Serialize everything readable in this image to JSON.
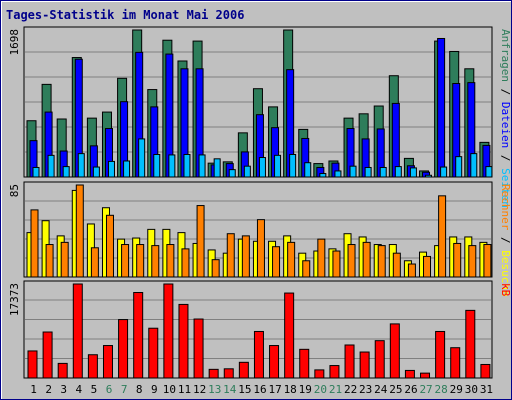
{
  "title": "Tages-Statistik im Monat Mai 2006",
  "colors": {
    "background": "#c0c0c0",
    "title": "#00008b",
    "border": "#00008b",
    "anfragen": "#2e7d5b",
    "dateien": "#0000ff",
    "seiten": "#00bfff",
    "besuche": "#ffff00",
    "rechner": "#ff8000",
    "kb": "#ff0000",
    "weekday_label": "#000000",
    "weekend_label": "#2e7d5b"
  },
  "chart_data": [
    {
      "type": "bar",
      "panel": "requests",
      "ylim": [
        0,
        1698
      ],
      "max_label": "1698",
      "right_labels": [
        {
          "text": "Anfragen",
          "color": "#2e7d5b"
        },
        {
          "text": " / ",
          "color": "#000000"
        },
        {
          "text": "Dateien",
          "color": "#0000ff"
        },
        {
          "text": " / ",
          "color": "#000000"
        },
        {
          "text": "Seiten",
          "color": "#00bfff"
        }
      ],
      "categories": [
        "1",
        "2",
        "3",
        "4",
        "5",
        "6",
        "7",
        "8",
        "9",
        "10",
        "11",
        "12",
        "13",
        "14",
        "15",
        "16",
        "17",
        "18",
        "19",
        "20",
        "21",
        "22",
        "23",
        "24",
        "25",
        "26",
        "27",
        "28",
        "29",
        "30",
        "31"
      ],
      "series": [
        {
          "name": "Anfragen",
          "values": [
            650,
            1070,
            670,
            1380,
            680,
            750,
            1140,
            1698,
            1010,
            1580,
            1340,
            1570,
            160,
            175,
            510,
            1020,
            810,
            1698,
            550,
            155,
            185,
            680,
            730,
            820,
            1170,
            215,
            70,
            1570,
            1450,
            1250,
            400
          ]
        },
        {
          "name": "Dateien",
          "values": [
            420,
            750,
            300,
            1360,
            360,
            560,
            870,
            1440,
            810,
            1420,
            1250,
            1250,
            140,
            155,
            290,
            720,
            570,
            1240,
            445,
            110,
            160,
            560,
            440,
            555,
            850,
            130,
            55,
            1600,
            1080,
            1090,
            365
          ]
        },
        {
          "name": "Seiten",
          "values": [
            110,
            250,
            120,
            270,
            115,
            180,
            185,
            440,
            260,
            255,
            260,
            255,
            210,
            85,
            125,
            225,
            250,
            260,
            165,
            40,
            70,
            125,
            110,
            110,
            120,
            105,
            20,
            115,
            235,
            270,
            120
          ]
        }
      ]
    },
    {
      "type": "bar",
      "panel": "visits",
      "ylim": [
        0,
        85
      ],
      "max_label": "85",
      "right_labels": [
        {
          "text": "Rechner",
          "color": "#ff8000"
        },
        {
          "text": " / ",
          "color": "#000000"
        },
        {
          "text": "Besuche",
          "color": "#ffff00"
        }
      ],
      "categories": [
        "1",
        "2",
        "3",
        "4",
        "5",
        "6",
        "7",
        "8",
        "9",
        "10",
        "11",
        "12",
        "13",
        "14",
        "15",
        "16",
        "17",
        "18",
        "19",
        "20",
        "21",
        "22",
        "23",
        "24",
        "25",
        "26",
        "27",
        "28",
        "29",
        "30",
        "31"
      ],
      "series": [
        {
          "name": "Besuche",
          "values": [
            41,
            52,
            38,
            80,
            49,
            64,
            35,
            36,
            44,
            44,
            41,
            31,
            25,
            22,
            35,
            33,
            33,
            38,
            22,
            24,
            26,
            40,
            37,
            30,
            30,
            15,
            23,
            29,
            37,
            37,
            32
          ]
        },
        {
          "name": "Rechner",
          "values": [
            62,
            30,
            32,
            85,
            27,
            57,
            30,
            30,
            29,
            30,
            26,
            66,
            16,
            40,
            38,
            53,
            28,
            32,
            15,
            35,
            24,
            30,
            32,
            29,
            22,
            12,
            19,
            75,
            31,
            29,
            30
          ]
        }
      ]
    },
    {
      "type": "bar",
      "panel": "traffic",
      "ylim": [
        0,
        17373
      ],
      "max_label": "17373",
      "right_labels": [
        {
          "text": "kB",
          "color": "#ff0000"
        }
      ],
      "categories": [
        "1",
        "2",
        "3",
        "4",
        "5",
        "6",
        "7",
        "8",
        "9",
        "10",
        "11",
        "12",
        "13",
        "14",
        "15",
        "16",
        "17",
        "18",
        "19",
        "20",
        "21",
        "22",
        "23",
        "24",
        "25",
        "26",
        "27",
        "28",
        "29",
        "30",
        "31"
      ],
      "series": [
        {
          "name": "kB",
          "values": [
            5000,
            8500,
            2700,
            17373,
            4300,
            6000,
            10800,
            15800,
            9200,
            17373,
            13600,
            10900,
            1600,
            1700,
            2900,
            8600,
            6000,
            15700,
            5300,
            1500,
            2300,
            6100,
            4800,
            6900,
            10000,
            1400,
            900,
            8600,
            5600,
            12500,
            2500
          ]
        }
      ]
    }
  ],
  "days": [
    "1",
    "2",
    "3",
    "4",
    "5",
    "6",
    "7",
    "8",
    "9",
    "10",
    "11",
    "12",
    "13",
    "14",
    "15",
    "16",
    "17",
    "18",
    "19",
    "20",
    "21",
    "22",
    "23",
    "24",
    "25",
    "26",
    "27",
    "28",
    "29",
    "30",
    "31"
  ],
  "weekend_days": [
    "6",
    "7",
    "13",
    "14",
    "20",
    "21",
    "27",
    "28"
  ]
}
